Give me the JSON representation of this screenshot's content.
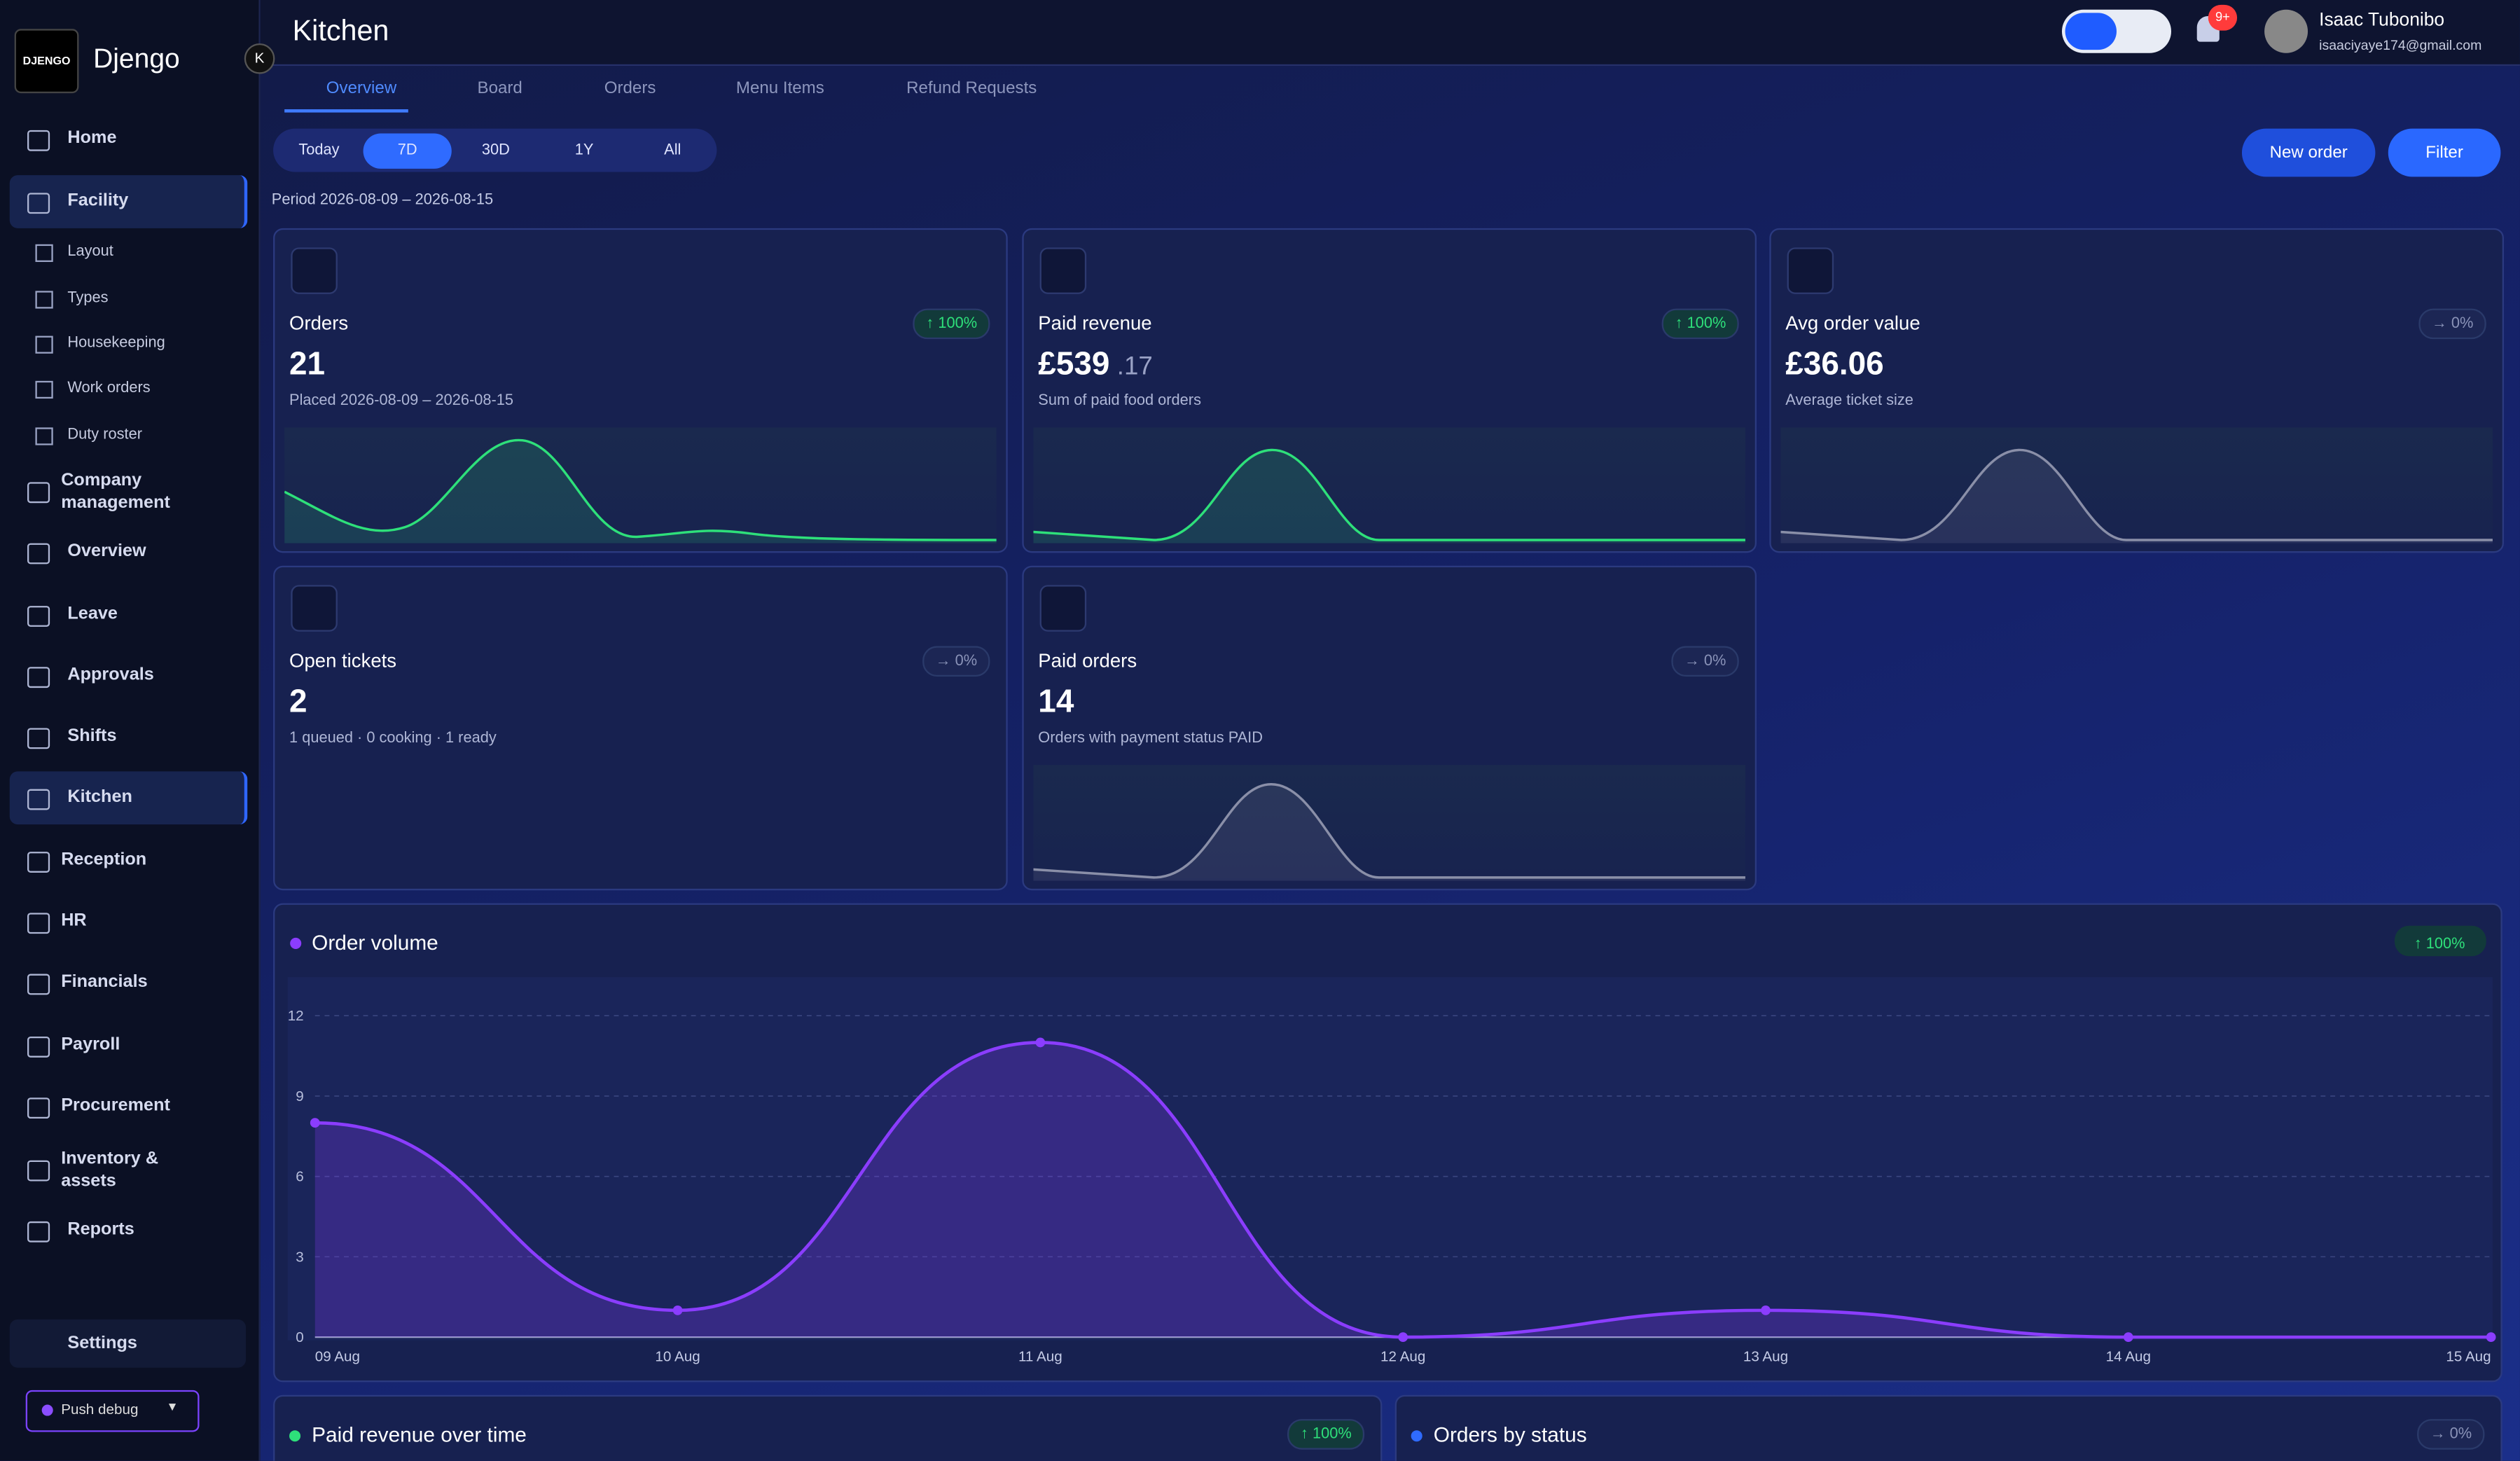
{
  "sidebar": {
    "logo": "DJENGO",
    "brand": "Djengo",
    "collapse": "K",
    "nav": [
      "Home",
      "Facility",
      "Company management",
      "Overview",
      "Leave",
      "Approvals",
      "Shifts",
      "Kitchen",
      "Reception",
      "HR",
      "Financials",
      "Payroll",
      "Procurement",
      "Inventory & assets",
      "Reports"
    ],
    "facility_items": [
      "Layout",
      "Types",
      "Housekeeping",
      "Work orders",
      "Duty roster"
    ],
    "settings": "Settings",
    "push_debug": "Push debug"
  },
  "header": {
    "title": "Kitchen",
    "notification_count": "9+",
    "user_name": "Isaac Tubonibo",
    "user_email": "isaaciyaye174@gmail.com"
  },
  "tabs": [
    "Overview",
    "Board",
    "Orders",
    "Menu Items",
    "Refund Requests"
  ],
  "ranges": [
    "Today",
    "7D",
    "30D",
    "1Y",
    "All"
  ],
  "actions": [
    "New order",
    "Filter"
  ],
  "period": "Period 2026-08-09 – 2026-08-15",
  "cards": [
    {
      "title": "Orders",
      "change": "↑ 100%",
      "value": "21",
      "note": "Placed 2026-08-09 – 2026-08-15"
    },
    {
      "title": "Paid revenue",
      "change": "↑ 100%",
      "value": "£539",
      "value_fraction": ".17",
      "note": "Sum of paid food orders"
    },
    {
      "title": "Avg order value",
      "change": "→ 0%",
      "value": "£36.06",
      "note": "Average ticket size"
    },
    {
      "title": "Open tickets",
      "change": "→ 0%",
      "value": "2",
      "note": "1 queued · 0 cooking · 1 ready"
    },
    {
      "title": "Paid orders",
      "change": "→ 0%",
      "value": "14",
      "note": "Orders with payment status PAID"
    }
  ],
  "chart_data": {
    "type": "line",
    "title": "Order volume",
    "change": "↑ 100%",
    "color": "#8b3dff",
    "categories": [
      "09 Aug",
      "10 Aug",
      "11 Aug",
      "12 Aug",
      "13 Aug",
      "14 Aug",
      "15 Aug"
    ],
    "values": [
      8,
      1,
      11,
      0,
      1,
      0,
      0
    ],
    "ylim": [
      0,
      12
    ],
    "yticks": [
      0,
      3,
      6,
      9,
      12
    ],
    "grid": true
  },
  "bottom_panels": [
    {
      "title": "Paid revenue over time",
      "change": "↑ 100%"
    },
    {
      "title": "Orders by status",
      "change": "→ 0%"
    }
  ]
}
